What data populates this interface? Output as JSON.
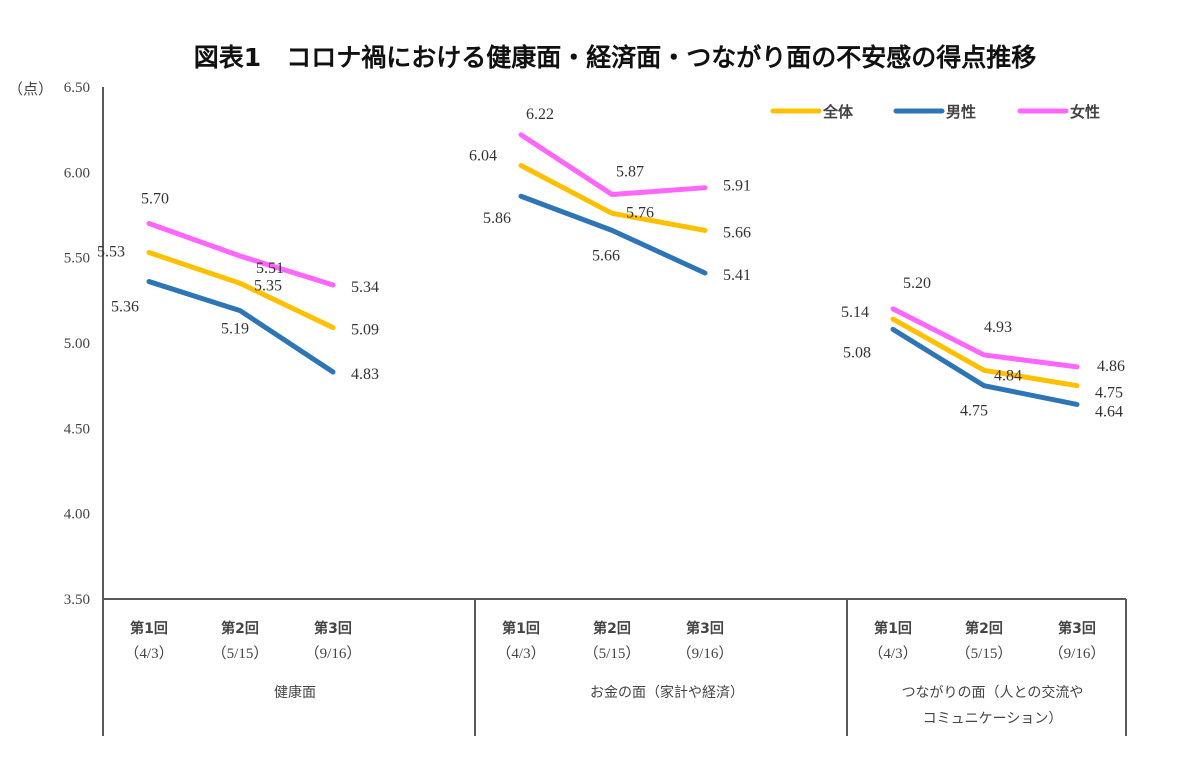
{
  "chart_data": {
    "type": "line",
    "title": "図表1　コロナ禍における健康面・経済面・つながり面の不安感の得点推移",
    "ylabel": "（点）",
    "ylim": [
      3.5,
      6.5
    ],
    "yticks": [
      "6.50",
      "6.00",
      "5.50",
      "5.00",
      "4.50",
      "4.00",
      "3.50"
    ],
    "ytick_values": [
      6.5,
      6.0,
      5.5,
      5.0,
      4.5,
      4.0,
      3.5
    ],
    "grid": false,
    "legend_position": "top-right",
    "groups": [
      {
        "name": "健康面",
        "name_lines": [
          "健康面"
        ],
        "categories": [
          {
            "round": "第1回",
            "date": "（4/3）"
          },
          {
            "round": "第2回",
            "date": "（5/15）"
          },
          {
            "round": "第3回",
            "date": "（9/16）"
          }
        ]
      },
      {
        "name": "お金の面（家計や経済）",
        "name_lines": [
          "お金の面（家計や経済）"
        ],
        "categories": [
          {
            "round": "第1回",
            "date": "（4/3）"
          },
          {
            "round": "第2回",
            "date": "（5/15）"
          },
          {
            "round": "第3回",
            "date": "（9/16）"
          }
        ]
      },
      {
        "name": "つながりの面（人との交流やコミュニケーション）",
        "name_lines": [
          "つながりの面（人との交流や",
          "コミュニケーション）"
        ],
        "categories": [
          {
            "round": "第1回",
            "date": "（4/3）"
          },
          {
            "round": "第2回",
            "date": "（5/15）"
          },
          {
            "round": "第3回",
            "date": "（9/16）"
          }
        ]
      }
    ],
    "series": [
      {
        "name": "全体",
        "color": "#FFC000",
        "values": [
          [
            5.53,
            5.35,
            5.09
          ],
          [
            6.04,
            5.76,
            5.66
          ],
          [
            5.14,
            4.84,
            4.75
          ]
        ]
      },
      {
        "name": "男性",
        "color": "#2E75B6",
        "values": [
          [
            5.36,
            5.19,
            4.83
          ],
          [
            5.86,
            5.66,
            5.41
          ],
          [
            5.08,
            4.75,
            4.64
          ]
        ]
      },
      {
        "name": "女性",
        "color": "#FF66FF",
        "values": [
          [
            5.7,
            5.51,
            5.34
          ],
          [
            6.22,
            5.87,
            5.91
          ],
          [
            5.2,
            4.93,
            4.86
          ]
        ]
      }
    ]
  }
}
